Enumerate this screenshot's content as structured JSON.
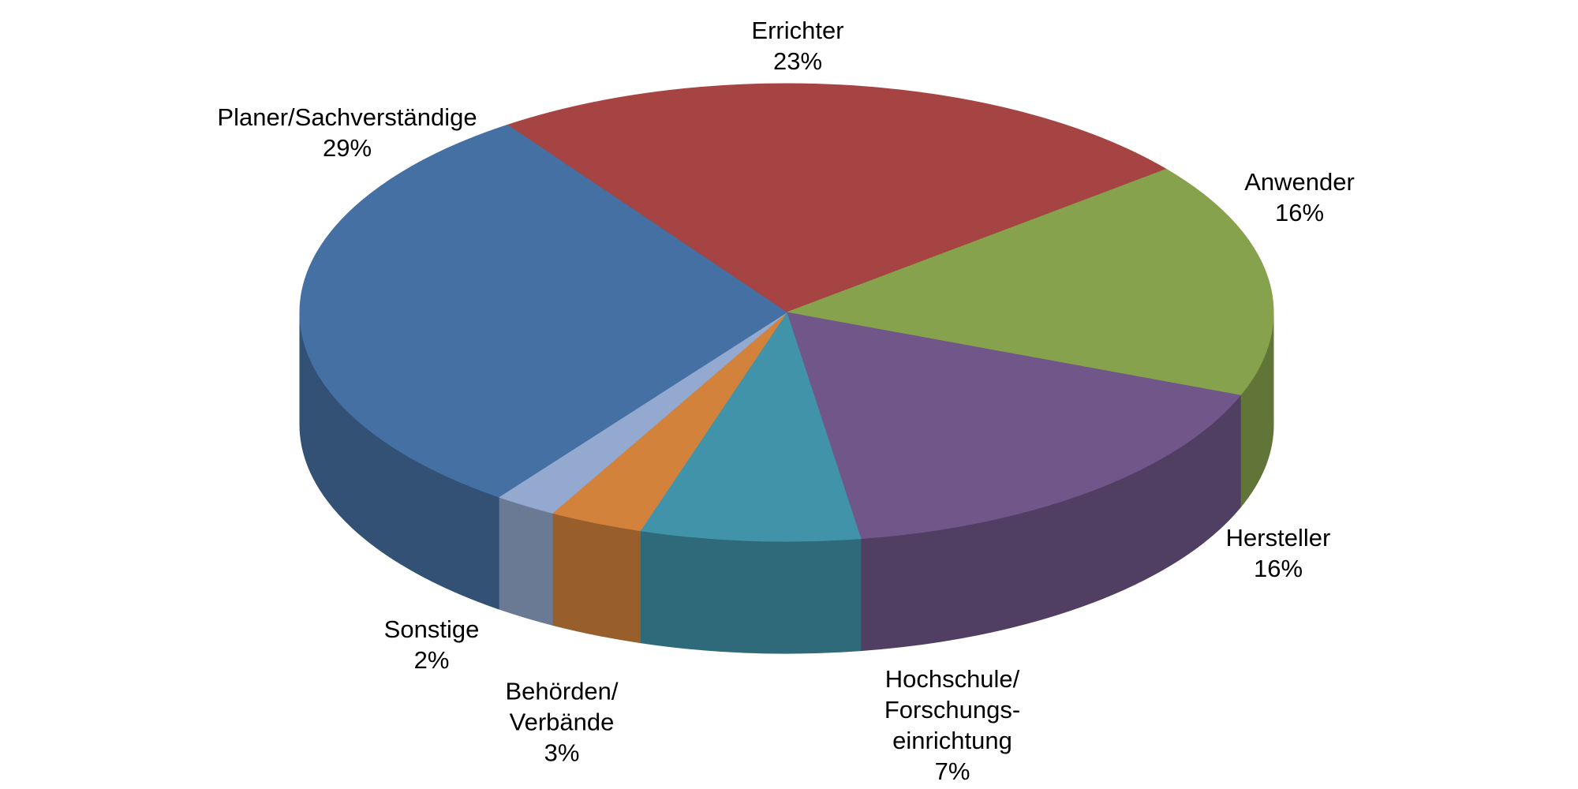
{
  "chart_data": {
    "type": "pie",
    "categories": [
      "Errichter",
      "Anwender",
      "Hersteller",
      "Hochschule/\nForschungs-\neinrichtung",
      "Behörden/\nVerbände",
      "Sonstige",
      "Planer/Sachverständige"
    ],
    "values": [
      23,
      16,
      16,
      7,
      3,
      2,
      29
    ],
    "value_labels": [
      "23%",
      "16%",
      "16%",
      "7%",
      "3%",
      "2%",
      "29%"
    ],
    "colors": [
      "#a54442",
      "#86a24d",
      "#71568a",
      "#4093a8",
      "#d3823c",
      "#93a9cf",
      "#4570a3"
    ]
  }
}
